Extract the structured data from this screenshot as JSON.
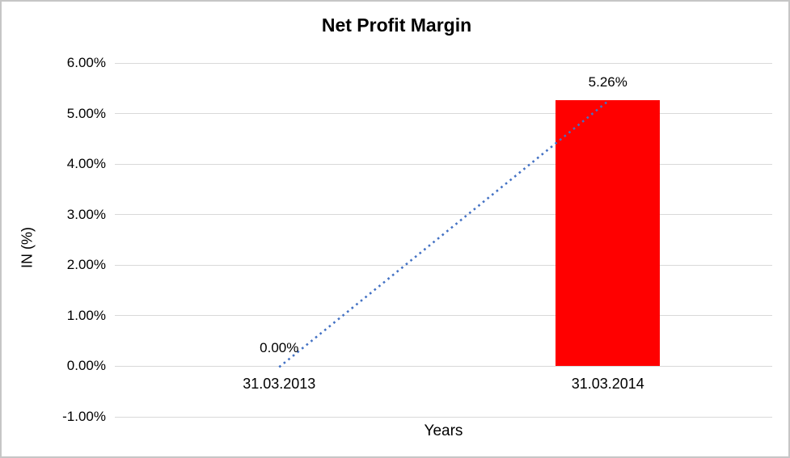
{
  "window": {
    "background_color": "#FFFFFF",
    "border_color": "#C6C6C6"
  },
  "chart_data": {
    "type": "bar",
    "title": "Net Profit Margin",
    "xlabel": "Years",
    "ylabel": "IN (%)",
    "categories": [
      "31.03.2013",
      "31.03.2014"
    ],
    "values": [
      0,
      5.26
    ],
    "data_labels": [
      "0.00%",
      "5.26%"
    ],
    "bar_color": "#FF0000",
    "ylim": [
      -1,
      6
    ],
    "yticks": [
      {
        "value": 6,
        "label": "6.00%"
      },
      {
        "value": 5,
        "label": "5.00%"
      },
      {
        "value": 4,
        "label": "4.00%"
      },
      {
        "value": 3,
        "label": "3.00%"
      },
      {
        "value": 2,
        "label": "2.00%"
      },
      {
        "value": 1,
        "label": "1.00%"
      },
      {
        "value": 0,
        "label": "0.00%"
      },
      {
        "value": -1,
        "label": "-1.00%"
      }
    ],
    "grid": true,
    "gridline_color": "#D9D9D9",
    "legend": "none",
    "trendline": {
      "style": "dotted",
      "color": "#4472C4",
      "from": {
        "category": "31.03.2013",
        "value": 0
      },
      "to": {
        "category": "31.03.2014",
        "value": 5.26
      }
    }
  }
}
